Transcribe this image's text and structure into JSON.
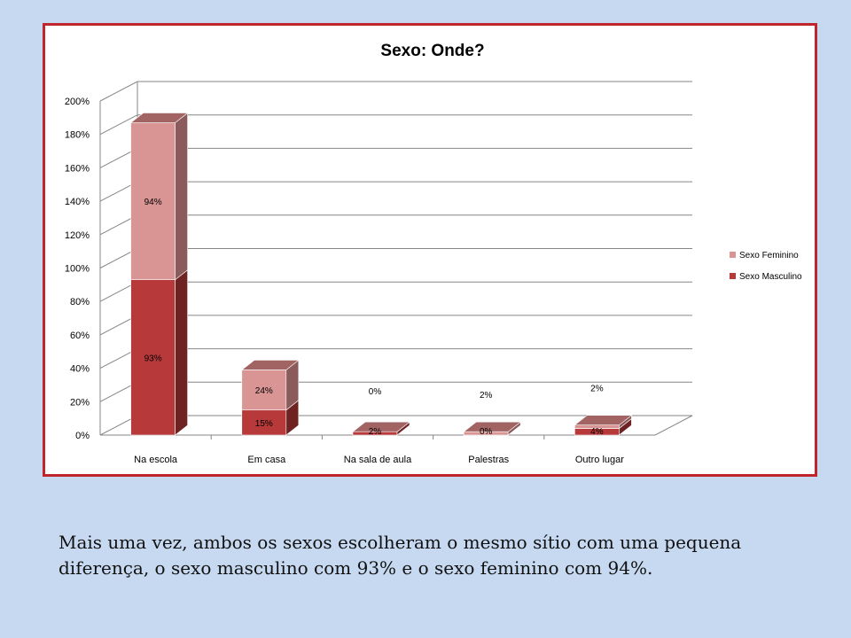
{
  "slide": {
    "caption": "Mais uma vez, ambos os sexos escolheram o mesmo sítio com uma pequena diferença, o sexo masculino com 93% e o sexo feminino com 94%."
  },
  "colors": {
    "background": "#c6d9f1",
    "frame_border": "#c0252c",
    "masculino_front": "#b7393a",
    "feminino_front": "#d99594"
  },
  "chart_data": {
    "type": "bar",
    "stacked": true,
    "three_d": true,
    "title": "Sexo: Onde?",
    "xlabel": "",
    "ylabel": "",
    "categories": [
      "Na escola",
      "Em casa",
      "Na sala de aula",
      "Palestras",
      "Outro lugar"
    ],
    "series": [
      {
        "name": "Sexo Masculino",
        "values": [
          93,
          15,
          2,
          0,
          4
        ],
        "labels": [
          "93%",
          "15%",
          "2%",
          "0%",
          "4%"
        ],
        "color": "#b7393a"
      },
      {
        "name": "Sexo Feminino",
        "values": [
          94,
          24,
          0,
          2,
          2
        ],
        "labels": [
          "94%",
          "24%",
          "0%",
          "2%",
          "2%"
        ],
        "color": "#d99594"
      }
    ],
    "ylim": [
      0,
      200
    ],
    "yticks": [
      "0%",
      "20%",
      "40%",
      "60%",
      "80%",
      "100%",
      "120%",
      "140%",
      "160%",
      "180%",
      "200%"
    ],
    "grid": true,
    "legend_position": "right",
    "legend": [
      "Sexo Feminino",
      "Sexo Masculino"
    ]
  }
}
